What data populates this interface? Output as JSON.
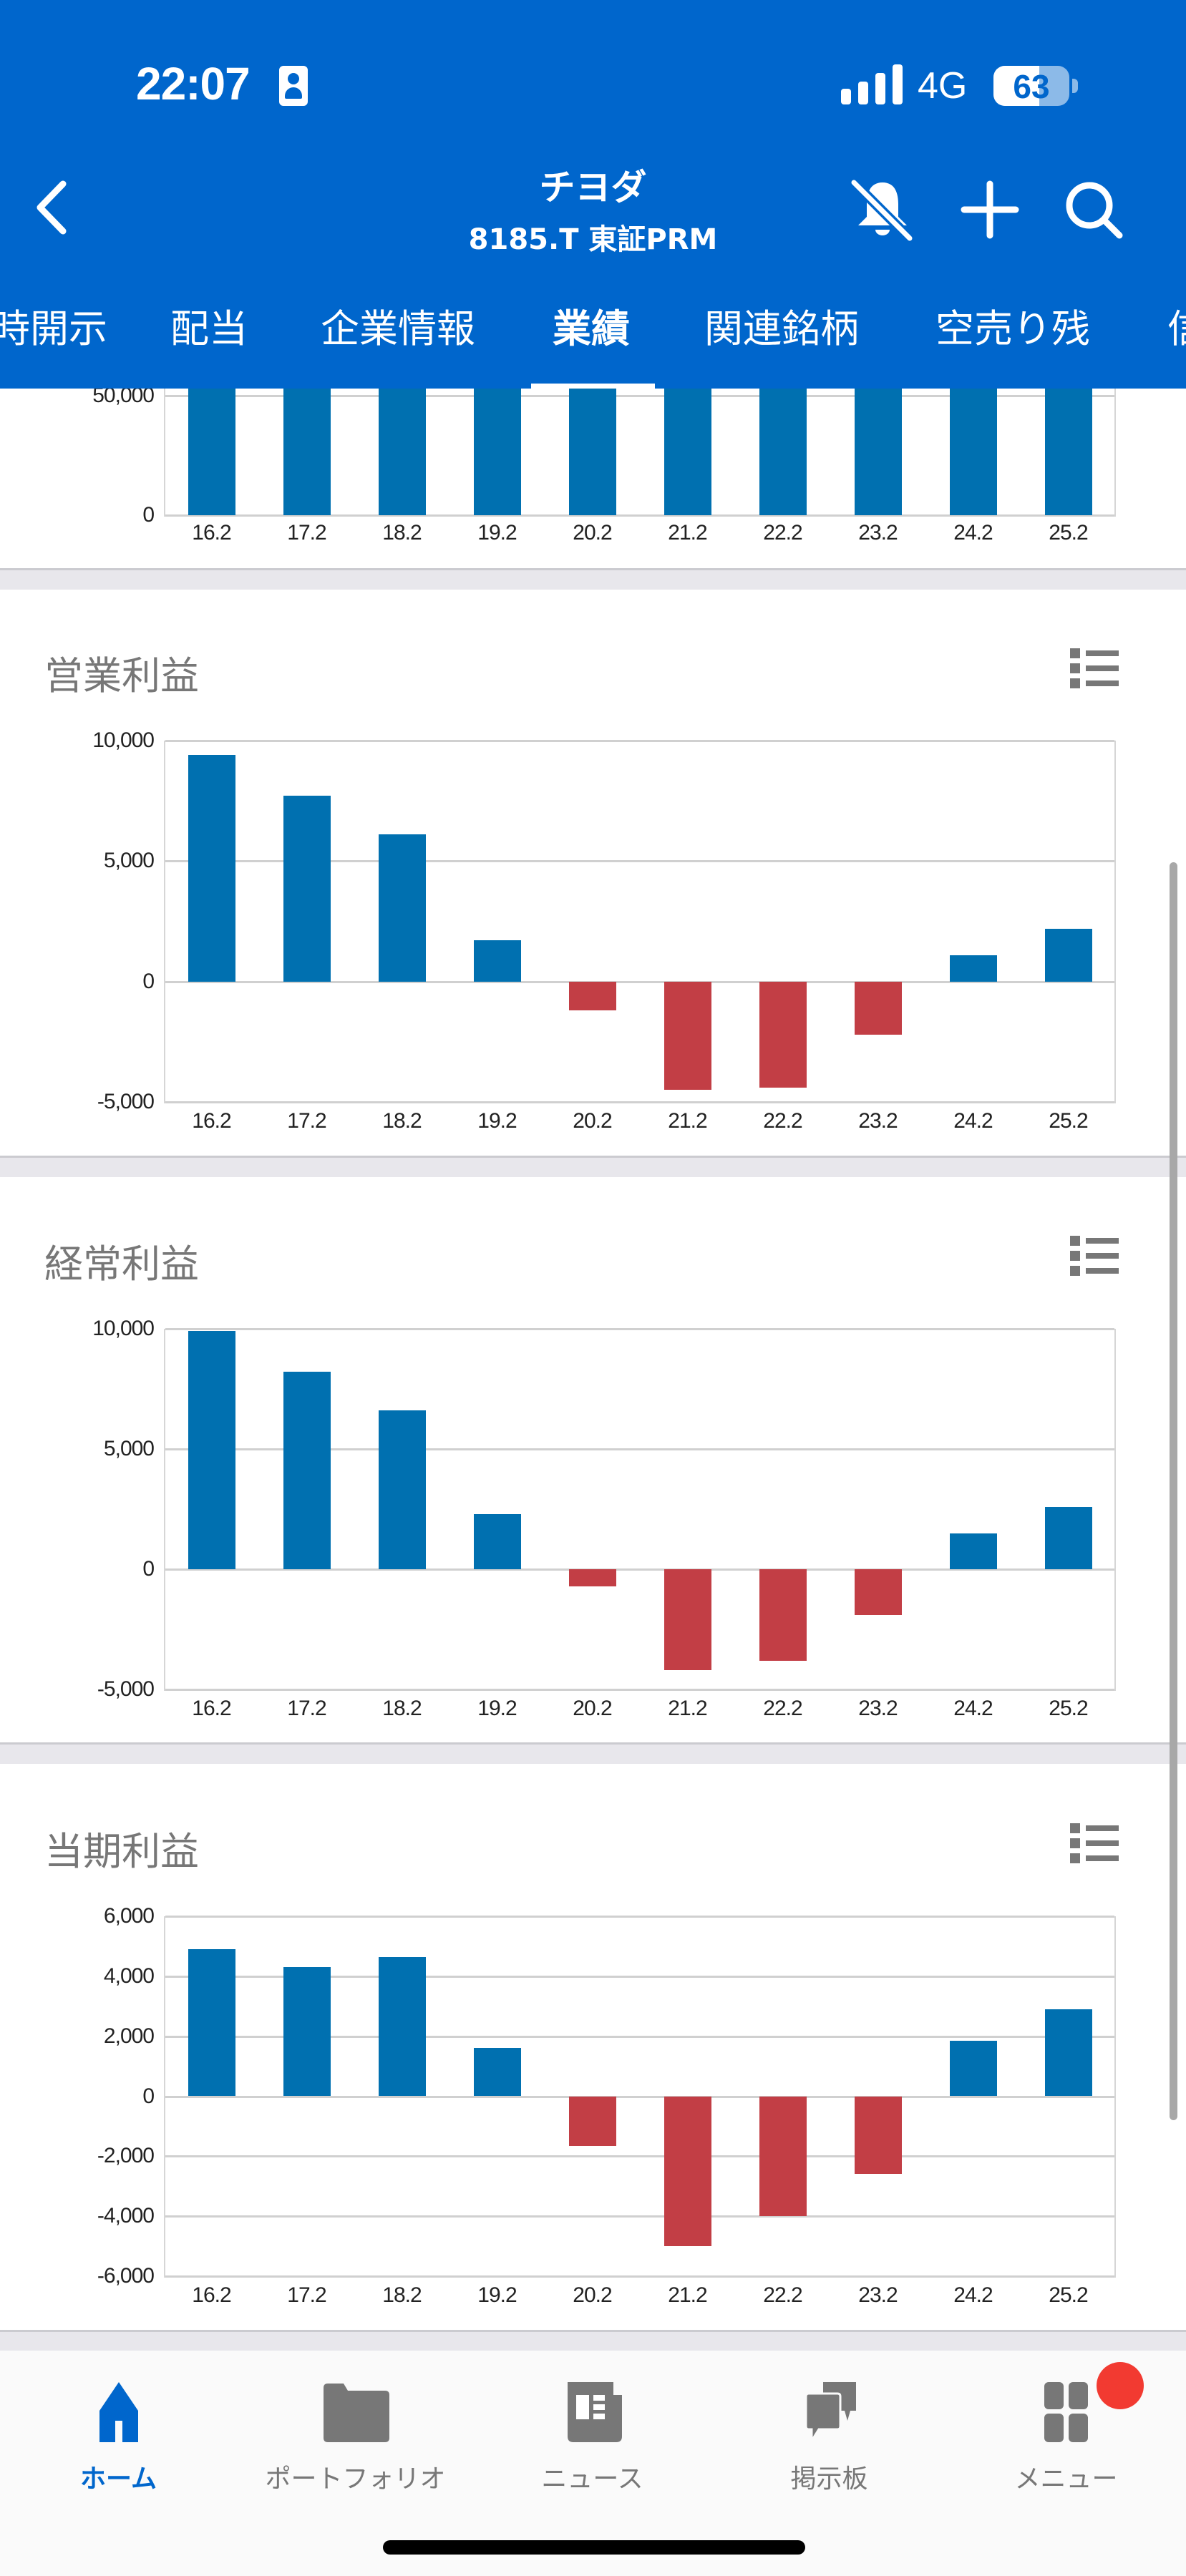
{
  "status_bar": {
    "time": "22:07",
    "network": "4G",
    "battery": "63",
    "signal_bars": 4
  },
  "nav_bar": {
    "title": "チヨダ",
    "subtitle": "8185.T 東証PRM",
    "icons": [
      "back-chevron-icon",
      "bell-slash-icon",
      "plus-icon",
      "search-icon"
    ]
  },
  "tabs": [
    {
      "label": "時開示",
      "active": false
    },
    {
      "label": "配当",
      "active": false
    },
    {
      "label": "企業情報",
      "active": false
    },
    {
      "label": "業績",
      "active": true
    },
    {
      "label": "関連銘柄",
      "active": false
    },
    {
      "label": "空売り残",
      "active": false
    },
    {
      "label": "信",
      "active": false
    }
  ],
  "colors": {
    "header_blue": "#0066CC",
    "bar_positive": "#0070B0",
    "bar_negative": "#C23E45",
    "title_gray": "#777777",
    "badge_red": "#F23A31"
  },
  "chart_data": [
    {
      "id": "revenue-partial",
      "type": "bar",
      "title": "",
      "categories": [
        "16.2",
        "17.2",
        "18.2",
        "19.2",
        "20.2",
        "21.2",
        "22.2",
        "23.2",
        "24.2",
        "25.2"
      ],
      "values": [
        null,
        null,
        null,
        null,
        null,
        null,
        null,
        null,
        null,
        null
      ],
      "note": "bars extend above visible area (all exceed 50,000)",
      "yticks": [
        {
          "label": "50,000",
          "value": 50000
        },
        {
          "label": "0",
          "value": 0
        }
      ],
      "ylim": [
        0,
        50000
      ],
      "xlabel": "",
      "ylabel": "",
      "grid": true,
      "legend": "none"
    },
    {
      "id": "operating-profit",
      "type": "bar",
      "title": "営業利益",
      "categories": [
        "16.2",
        "17.2",
        "18.2",
        "19.2",
        "20.2",
        "21.2",
        "22.2",
        "23.2",
        "24.2",
        "25.2"
      ],
      "values": [
        9400,
        7700,
        6100,
        1700,
        -1200,
        -4500,
        -4400,
        -2200,
        1100,
        2200
      ],
      "yticks": [
        {
          "label": "10,000",
          "value": 10000
        },
        {
          "label": "5,000",
          "value": 5000
        },
        {
          "label": "0",
          "value": 0
        },
        {
          "label": "-5,000",
          "value": -5000
        }
      ],
      "ylim": [
        -5000,
        10000
      ],
      "xlabel": "",
      "ylabel": "",
      "grid": true,
      "legend": "none"
    },
    {
      "id": "ordinary-profit",
      "type": "bar",
      "title": "経常利益",
      "categories": [
        "16.2",
        "17.2",
        "18.2",
        "19.2",
        "20.2",
        "21.2",
        "22.2",
        "23.2",
        "24.2",
        "25.2"
      ],
      "values": [
        9900,
        8200,
        6600,
        2300,
        -700,
        -4200,
        -3800,
        -1900,
        1500,
        2600
      ],
      "yticks": [
        {
          "label": "10,000",
          "value": 10000
        },
        {
          "label": "5,000",
          "value": 5000
        },
        {
          "label": "0",
          "value": 0
        },
        {
          "label": "-5,000",
          "value": -5000
        }
      ],
      "ylim": [
        -5000,
        10000
      ],
      "xlabel": "",
      "ylabel": "",
      "grid": true,
      "legend": "none"
    },
    {
      "id": "net-profit",
      "type": "bar",
      "title": "当期利益",
      "categories": [
        "16.2",
        "17.2",
        "18.2",
        "19.2",
        "20.2",
        "21.2",
        "22.2",
        "23.2",
        "24.2",
        "25.2"
      ],
      "values": [
        4900,
        4300,
        4650,
        1600,
        -1650,
        -5000,
        -4000,
        -2600,
        1850,
        2900
      ],
      "yticks": [
        {
          "label": "6,000",
          "value": 6000
        },
        {
          "label": "4,000",
          "value": 4000
        },
        {
          "label": "2,000",
          "value": 2000
        },
        {
          "label": "0",
          "value": 0
        },
        {
          "label": "-2,000",
          "value": -2000
        },
        {
          "label": "-4,000",
          "value": -4000
        },
        {
          "label": "-6,000",
          "value": -6000
        }
      ],
      "ylim": [
        -6000,
        6000
      ],
      "xlabel": "",
      "ylabel": "",
      "grid": true,
      "legend": "none"
    }
  ],
  "bottom_nav": [
    {
      "label": "ホーム",
      "icon": "home-icon",
      "active": true
    },
    {
      "label": "ポートフォリオ",
      "icon": "folder-icon",
      "active": false
    },
    {
      "label": "ニュース",
      "icon": "newspaper-icon",
      "active": false
    },
    {
      "label": "掲示板",
      "icon": "chat-bubbles-icon",
      "active": false
    },
    {
      "label": "メニュー",
      "icon": "grid-menu-icon",
      "active": false,
      "badge": true
    }
  ]
}
